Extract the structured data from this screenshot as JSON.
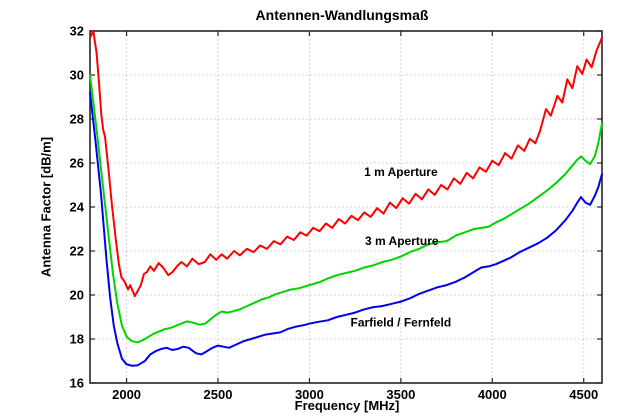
{
  "chart_data": {
    "type": "line",
    "title": "Antennen-Wandlungsmaß",
    "xlabel": "Frequency [MHz]",
    "ylabel": "Antenna Factor [dB/m]",
    "xlim": [
      1800,
      4600
    ],
    "ylim": [
      16,
      32
    ],
    "xticks": [
      2000,
      2500,
      3000,
      3500,
      4000,
      4500
    ],
    "yticks": [
      16,
      18,
      20,
      22,
      24,
      26,
      28,
      30,
      32
    ],
    "grid": true,
    "grid_style": "dotted",
    "legend_position": "inline-annotations",
    "colors": {
      "grid": "#c6c6c6",
      "axis": "#262626",
      "text": "#000000"
    },
    "series": [
      {
        "name": "1 m Aperture",
        "color": "#ff0000",
        "points": [
          [
            1800,
            31.7
          ],
          [
            1818,
            32.0
          ],
          [
            1836,
            31.0
          ],
          [
            1850,
            29.6
          ],
          [
            1862,
            28.2
          ],
          [
            1872,
            27.5
          ],
          [
            1882,
            27.2
          ],
          [
            1900,
            25.8
          ],
          [
            1920,
            24.1
          ],
          [
            1940,
            22.6
          ],
          [
            1958,
            21.4
          ],
          [
            1972,
            20.8
          ],
          [
            1990,
            20.6
          ],
          [
            2008,
            20.25
          ],
          [
            2020,
            20.45
          ],
          [
            2045,
            19.95
          ],
          [
            2062,
            20.2
          ],
          [
            2078,
            20.45
          ],
          [
            2095,
            20.95
          ],
          [
            2112,
            21.05
          ],
          [
            2130,
            21.3
          ],
          [
            2150,
            21.1
          ],
          [
            2175,
            21.45
          ],
          [
            2200,
            21.25
          ],
          [
            2228,
            20.9
          ],
          [
            2252,
            21.05
          ],
          [
            2275,
            21.3
          ],
          [
            2300,
            21.5
          ],
          [
            2330,
            21.3
          ],
          [
            2360,
            21.65
          ],
          [
            2395,
            21.4
          ],
          [
            2428,
            21.5
          ],
          [
            2458,
            21.85
          ],
          [
            2490,
            21.6
          ],
          [
            2520,
            21.85
          ],
          [
            2550,
            21.65
          ],
          [
            2588,
            22.0
          ],
          [
            2620,
            21.8
          ],
          [
            2658,
            22.1
          ],
          [
            2695,
            21.95
          ],
          [
            2730,
            22.25
          ],
          [
            2768,
            22.1
          ],
          [
            2805,
            22.45
          ],
          [
            2842,
            22.3
          ],
          [
            2878,
            22.65
          ],
          [
            2915,
            22.5
          ],
          [
            2950,
            22.85
          ],
          [
            2985,
            22.7
          ],
          [
            3020,
            23.05
          ],
          [
            3055,
            22.9
          ],
          [
            3090,
            23.25
          ],
          [
            3125,
            23.05
          ],
          [
            3160,
            23.45
          ],
          [
            3195,
            23.25
          ],
          [
            3230,
            23.6
          ],
          [
            3265,
            23.4
          ],
          [
            3300,
            23.75
          ],
          [
            3335,
            23.55
          ],
          [
            3370,
            23.95
          ],
          [
            3405,
            23.7
          ],
          [
            3440,
            24.2
          ],
          [
            3475,
            23.95
          ],
          [
            3510,
            24.4
          ],
          [
            3545,
            24.15
          ],
          [
            3580,
            24.6
          ],
          [
            3615,
            24.35
          ],
          [
            3650,
            24.8
          ],
          [
            3685,
            24.55
          ],
          [
            3720,
            25.0
          ],
          [
            3755,
            24.8
          ],
          [
            3790,
            25.3
          ],
          [
            3825,
            25.05
          ],
          [
            3860,
            25.55
          ],
          [
            3895,
            25.3
          ],
          [
            3930,
            25.8
          ],
          [
            3965,
            25.6
          ],
          [
            4000,
            26.1
          ],
          [
            4035,
            25.9
          ],
          [
            4070,
            26.45
          ],
          [
            4105,
            26.2
          ],
          [
            4140,
            26.8
          ],
          [
            4175,
            26.55
          ],
          [
            4205,
            27.1
          ],
          [
            4235,
            26.9
          ],
          [
            4261,
            27.45
          ],
          [
            4294,
            28.45
          ],
          [
            4320,
            28.15
          ],
          [
            4356,
            29.05
          ],
          [
            4383,
            28.75
          ],
          [
            4410,
            29.8
          ],
          [
            4438,
            29.4
          ],
          [
            4465,
            30.4
          ],
          [
            4492,
            30.05
          ],
          [
            4516,
            30.7
          ],
          [
            4543,
            30.35
          ],
          [
            4570,
            31.1
          ],
          [
            4600,
            31.7
          ]
        ]
      },
      {
        "name": "3 m Aperture",
        "color": "#00d400",
        "points": [
          [
            1800,
            30.0
          ],
          [
            1835,
            27.6
          ],
          [
            1870,
            25.0
          ],
          [
            1900,
            22.8
          ],
          [
            1925,
            21.0
          ],
          [
            1950,
            19.6
          ],
          [
            1975,
            18.6
          ],
          [
            2000,
            18.1
          ],
          [
            2030,
            17.9
          ],
          [
            2060,
            17.85
          ],
          [
            2090,
            17.95
          ],
          [
            2120,
            18.1
          ],
          [
            2150,
            18.25
          ],
          [
            2180,
            18.35
          ],
          [
            2210,
            18.45
          ],
          [
            2240,
            18.5
          ],
          [
            2270,
            18.6
          ],
          [
            2300,
            18.7
          ],
          [
            2330,
            18.8
          ],
          [
            2360,
            18.75
          ],
          [
            2400,
            18.65
          ],
          [
            2430,
            18.7
          ],
          [
            2460,
            18.9
          ],
          [
            2490,
            19.1
          ],
          [
            2520,
            19.25
          ],
          [
            2550,
            19.2
          ],
          [
            2580,
            19.25
          ],
          [
            2620,
            19.35
          ],
          [
            2660,
            19.5
          ],
          [
            2700,
            19.65
          ],
          [
            2740,
            19.8
          ],
          [
            2780,
            19.9
          ],
          [
            2820,
            20.05
          ],
          [
            2860,
            20.15
          ],
          [
            2900,
            20.25
          ],
          [
            2940,
            20.3
          ],
          [
            2980,
            20.4
          ],
          [
            3020,
            20.5
          ],
          [
            3060,
            20.6
          ],
          [
            3100,
            20.75
          ],
          [
            3150,
            20.9
          ],
          [
            3200,
            21.0
          ],
          [
            3250,
            21.1
          ],
          [
            3300,
            21.25
          ],
          [
            3350,
            21.35
          ],
          [
            3400,
            21.5
          ],
          [
            3450,
            21.6
          ],
          [
            3500,
            21.75
          ],
          [
            3550,
            21.95
          ],
          [
            3600,
            22.1
          ],
          [
            3650,
            22.3
          ],
          [
            3700,
            22.4
          ],
          [
            3750,
            22.45
          ],
          [
            3800,
            22.7
          ],
          [
            3850,
            22.85
          ],
          [
            3900,
            23.0
          ],
          [
            3940,
            23.05
          ],
          [
            3980,
            23.1
          ],
          [
            4020,
            23.3
          ],
          [
            4060,
            23.45
          ],
          [
            4100,
            23.65
          ],
          [
            4150,
            23.9
          ],
          [
            4200,
            24.15
          ],
          [
            4250,
            24.45
          ],
          [
            4300,
            24.75
          ],
          [
            4350,
            25.1
          ],
          [
            4400,
            25.5
          ],
          [
            4440,
            25.9
          ],
          [
            4465,
            26.15
          ],
          [
            4485,
            26.3
          ],
          [
            4510,
            26.1
          ],
          [
            4535,
            25.95
          ],
          [
            4560,
            26.3
          ],
          [
            4580,
            26.9
          ],
          [
            4600,
            27.8
          ]
        ]
      },
      {
        "name": "Farfield / Fernfeld",
        "color": "#0000ee",
        "points": [
          [
            1800,
            29.2
          ],
          [
            1830,
            27.0
          ],
          [
            1860,
            24.6
          ],
          [
            1890,
            21.6
          ],
          [
            1910,
            19.9
          ],
          [
            1930,
            18.6
          ],
          [
            1950,
            17.8
          ],
          [
            1975,
            17.1
          ],
          [
            2000,
            16.85
          ],
          [
            2030,
            16.78
          ],
          [
            2060,
            16.8
          ],
          [
            2080,
            16.9
          ],
          [
            2100,
            17.0
          ],
          [
            2130,
            17.3
          ],
          [
            2160,
            17.45
          ],
          [
            2190,
            17.55
          ],
          [
            2220,
            17.6
          ],
          [
            2250,
            17.5
          ],
          [
            2280,
            17.55
          ],
          [
            2310,
            17.65
          ],
          [
            2340,
            17.6
          ],
          [
            2380,
            17.35
          ],
          [
            2410,
            17.3
          ],
          [
            2440,
            17.45
          ],
          [
            2470,
            17.6
          ],
          [
            2500,
            17.7
          ],
          [
            2530,
            17.65
          ],
          [
            2560,
            17.6
          ],
          [
            2600,
            17.75
          ],
          [
            2640,
            17.9
          ],
          [
            2680,
            18.0
          ],
          [
            2720,
            18.1
          ],
          [
            2760,
            18.2
          ],
          [
            2800,
            18.25
          ],
          [
            2840,
            18.3
          ],
          [
            2880,
            18.45
          ],
          [
            2920,
            18.55
          ],
          [
            2950,
            18.6
          ],
          [
            2980,
            18.65
          ],
          [
            3000,
            18.7
          ],
          [
            3050,
            18.78
          ],
          [
            3100,
            18.85
          ],
          [
            3150,
            19.0
          ],
          [
            3200,
            19.1
          ],
          [
            3250,
            19.2
          ],
          [
            3300,
            19.35
          ],
          [
            3350,
            19.45
          ],
          [
            3400,
            19.5
          ],
          [
            3450,
            19.6
          ],
          [
            3500,
            19.7
          ],
          [
            3550,
            19.85
          ],
          [
            3600,
            20.05
          ],
          [
            3650,
            20.2
          ],
          [
            3700,
            20.35
          ],
          [
            3750,
            20.45
          ],
          [
            3800,
            20.6
          ],
          [
            3850,
            20.8
          ],
          [
            3900,
            21.05
          ],
          [
            3940,
            21.25
          ],
          [
            3980,
            21.3
          ],
          [
            4020,
            21.4
          ],
          [
            4060,
            21.55
          ],
          [
            4100,
            21.7
          ],
          [
            4150,
            21.95
          ],
          [
            4200,
            22.15
          ],
          [
            4250,
            22.35
          ],
          [
            4300,
            22.6
          ],
          [
            4350,
            22.95
          ],
          [
            4400,
            23.4
          ],
          [
            4440,
            23.85
          ],
          [
            4465,
            24.2
          ],
          [
            4485,
            24.45
          ],
          [
            4510,
            24.2
          ],
          [
            4535,
            24.1
          ],
          [
            4560,
            24.5
          ],
          [
            4580,
            24.9
          ],
          [
            4600,
            25.5
          ]
        ]
      }
    ],
    "annotations": [
      {
        "text": "1 m Aperture",
        "x": 3500,
        "y": 25.6
      },
      {
        "text": "3 m Aperture",
        "x": 3505,
        "y": 22.45
      },
      {
        "text": "Farfield / Fernfeld",
        "x": 3500,
        "y": 18.75
      }
    ]
  }
}
